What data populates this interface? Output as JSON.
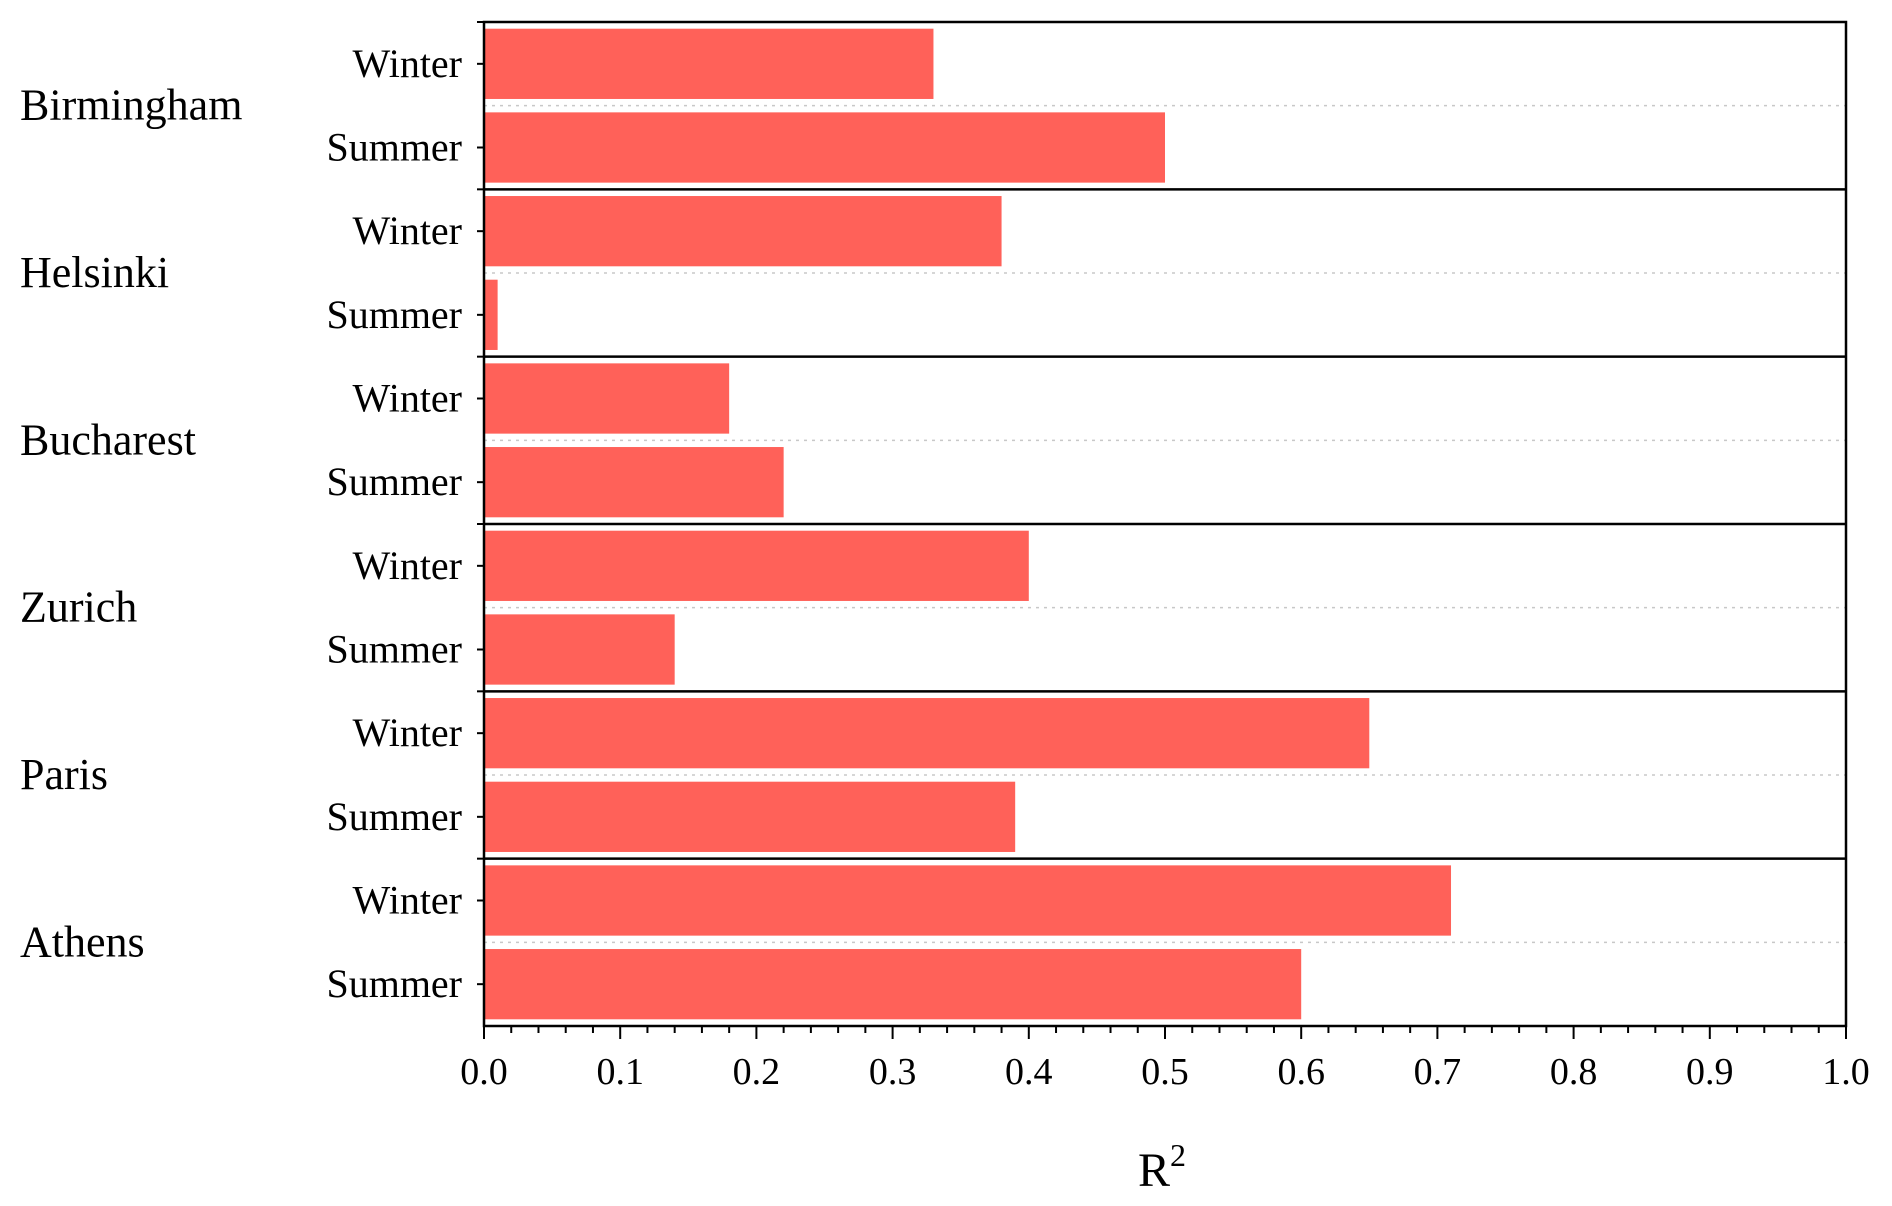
{
  "chart_data": {
    "type": "bar",
    "orientation": "horizontal",
    "groups": [
      {
        "city": "Birmingham",
        "bars": [
          {
            "season": "Winter",
            "value": 0.33
          },
          {
            "season": "Summer",
            "value": 0.5
          }
        ]
      },
      {
        "city": "Helsinki",
        "bars": [
          {
            "season": "Winter",
            "value": 0.38
          },
          {
            "season": "Summer",
            "value": 0.01
          }
        ]
      },
      {
        "city": "Bucharest",
        "bars": [
          {
            "season": "Winter",
            "value": 0.18
          },
          {
            "season": "Summer",
            "value": 0.22
          }
        ]
      },
      {
        "city": "Zurich",
        "bars": [
          {
            "season": "Winter",
            "value": 0.4
          },
          {
            "season": "Summer",
            "value": 0.14
          }
        ]
      },
      {
        "city": "Paris",
        "bars": [
          {
            "season": "Winter",
            "value": 0.65
          },
          {
            "season": "Summer",
            "value": 0.39
          }
        ]
      },
      {
        "city": "Athens",
        "bars": [
          {
            "season": "Winter",
            "value": 0.71
          },
          {
            "season": "Summer",
            "value": 0.6
          }
        ]
      }
    ],
    "xlabel": "R",
    "xlabel_superscript": "2",
    "xlim": [
      0.0,
      1.0
    ],
    "xticks": [
      "0.0",
      "0.1",
      "0.2",
      "0.3",
      "0.4",
      "0.5",
      "0.6",
      "0.7",
      "0.8",
      "0.9",
      "1.0"
    ],
    "bar_color": "#FF6159",
    "grid": "dotted horizontal separators between seasons",
    "legend": "none"
  }
}
